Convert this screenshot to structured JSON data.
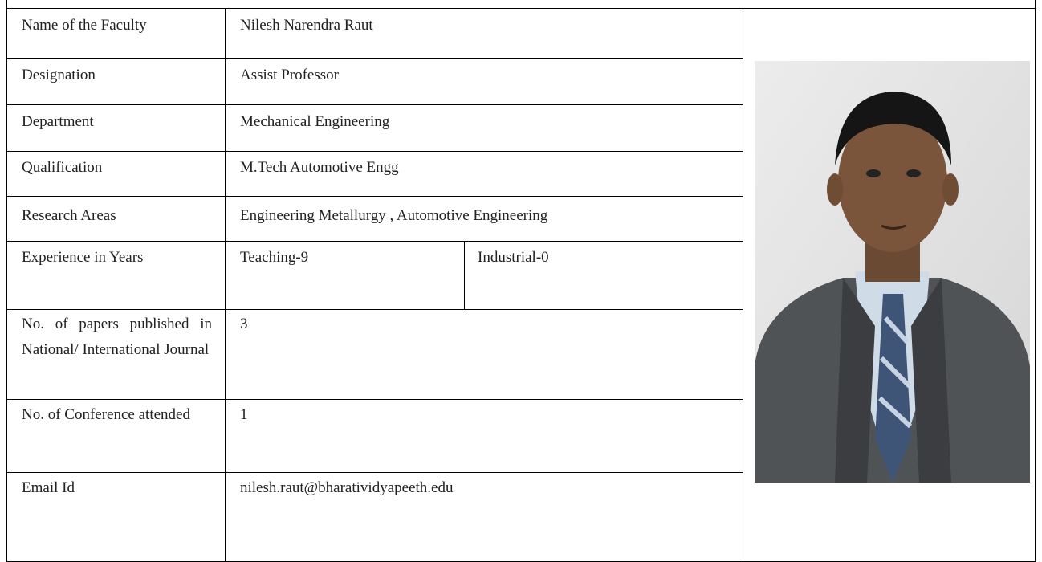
{
  "table": {
    "rows": [
      [
        "Name of the Faculty",
        "Nilesh Narendra Raut"
      ],
      [
        "Designation",
        "Assist Professor"
      ],
      [
        "Department",
        "Mechanical Engineering"
      ],
      [
        "Qualification",
        "M.Tech Automotive Engg"
      ],
      [
        "Research Areas",
        "Engineering Metallurgy , Automotive Engineering"
      ],
      [
        "Experience in Years",
        "Teaching-9",
        "Industrial-0"
      ],
      [
        "No. of papers published in National/ International Journal",
        "3"
      ],
      [
        "No. of Conference attended",
        "1"
      ],
      [
        "Email Id",
        "nilesh.raut@bharatividyapeeth.edu"
      ]
    ]
  }
}
